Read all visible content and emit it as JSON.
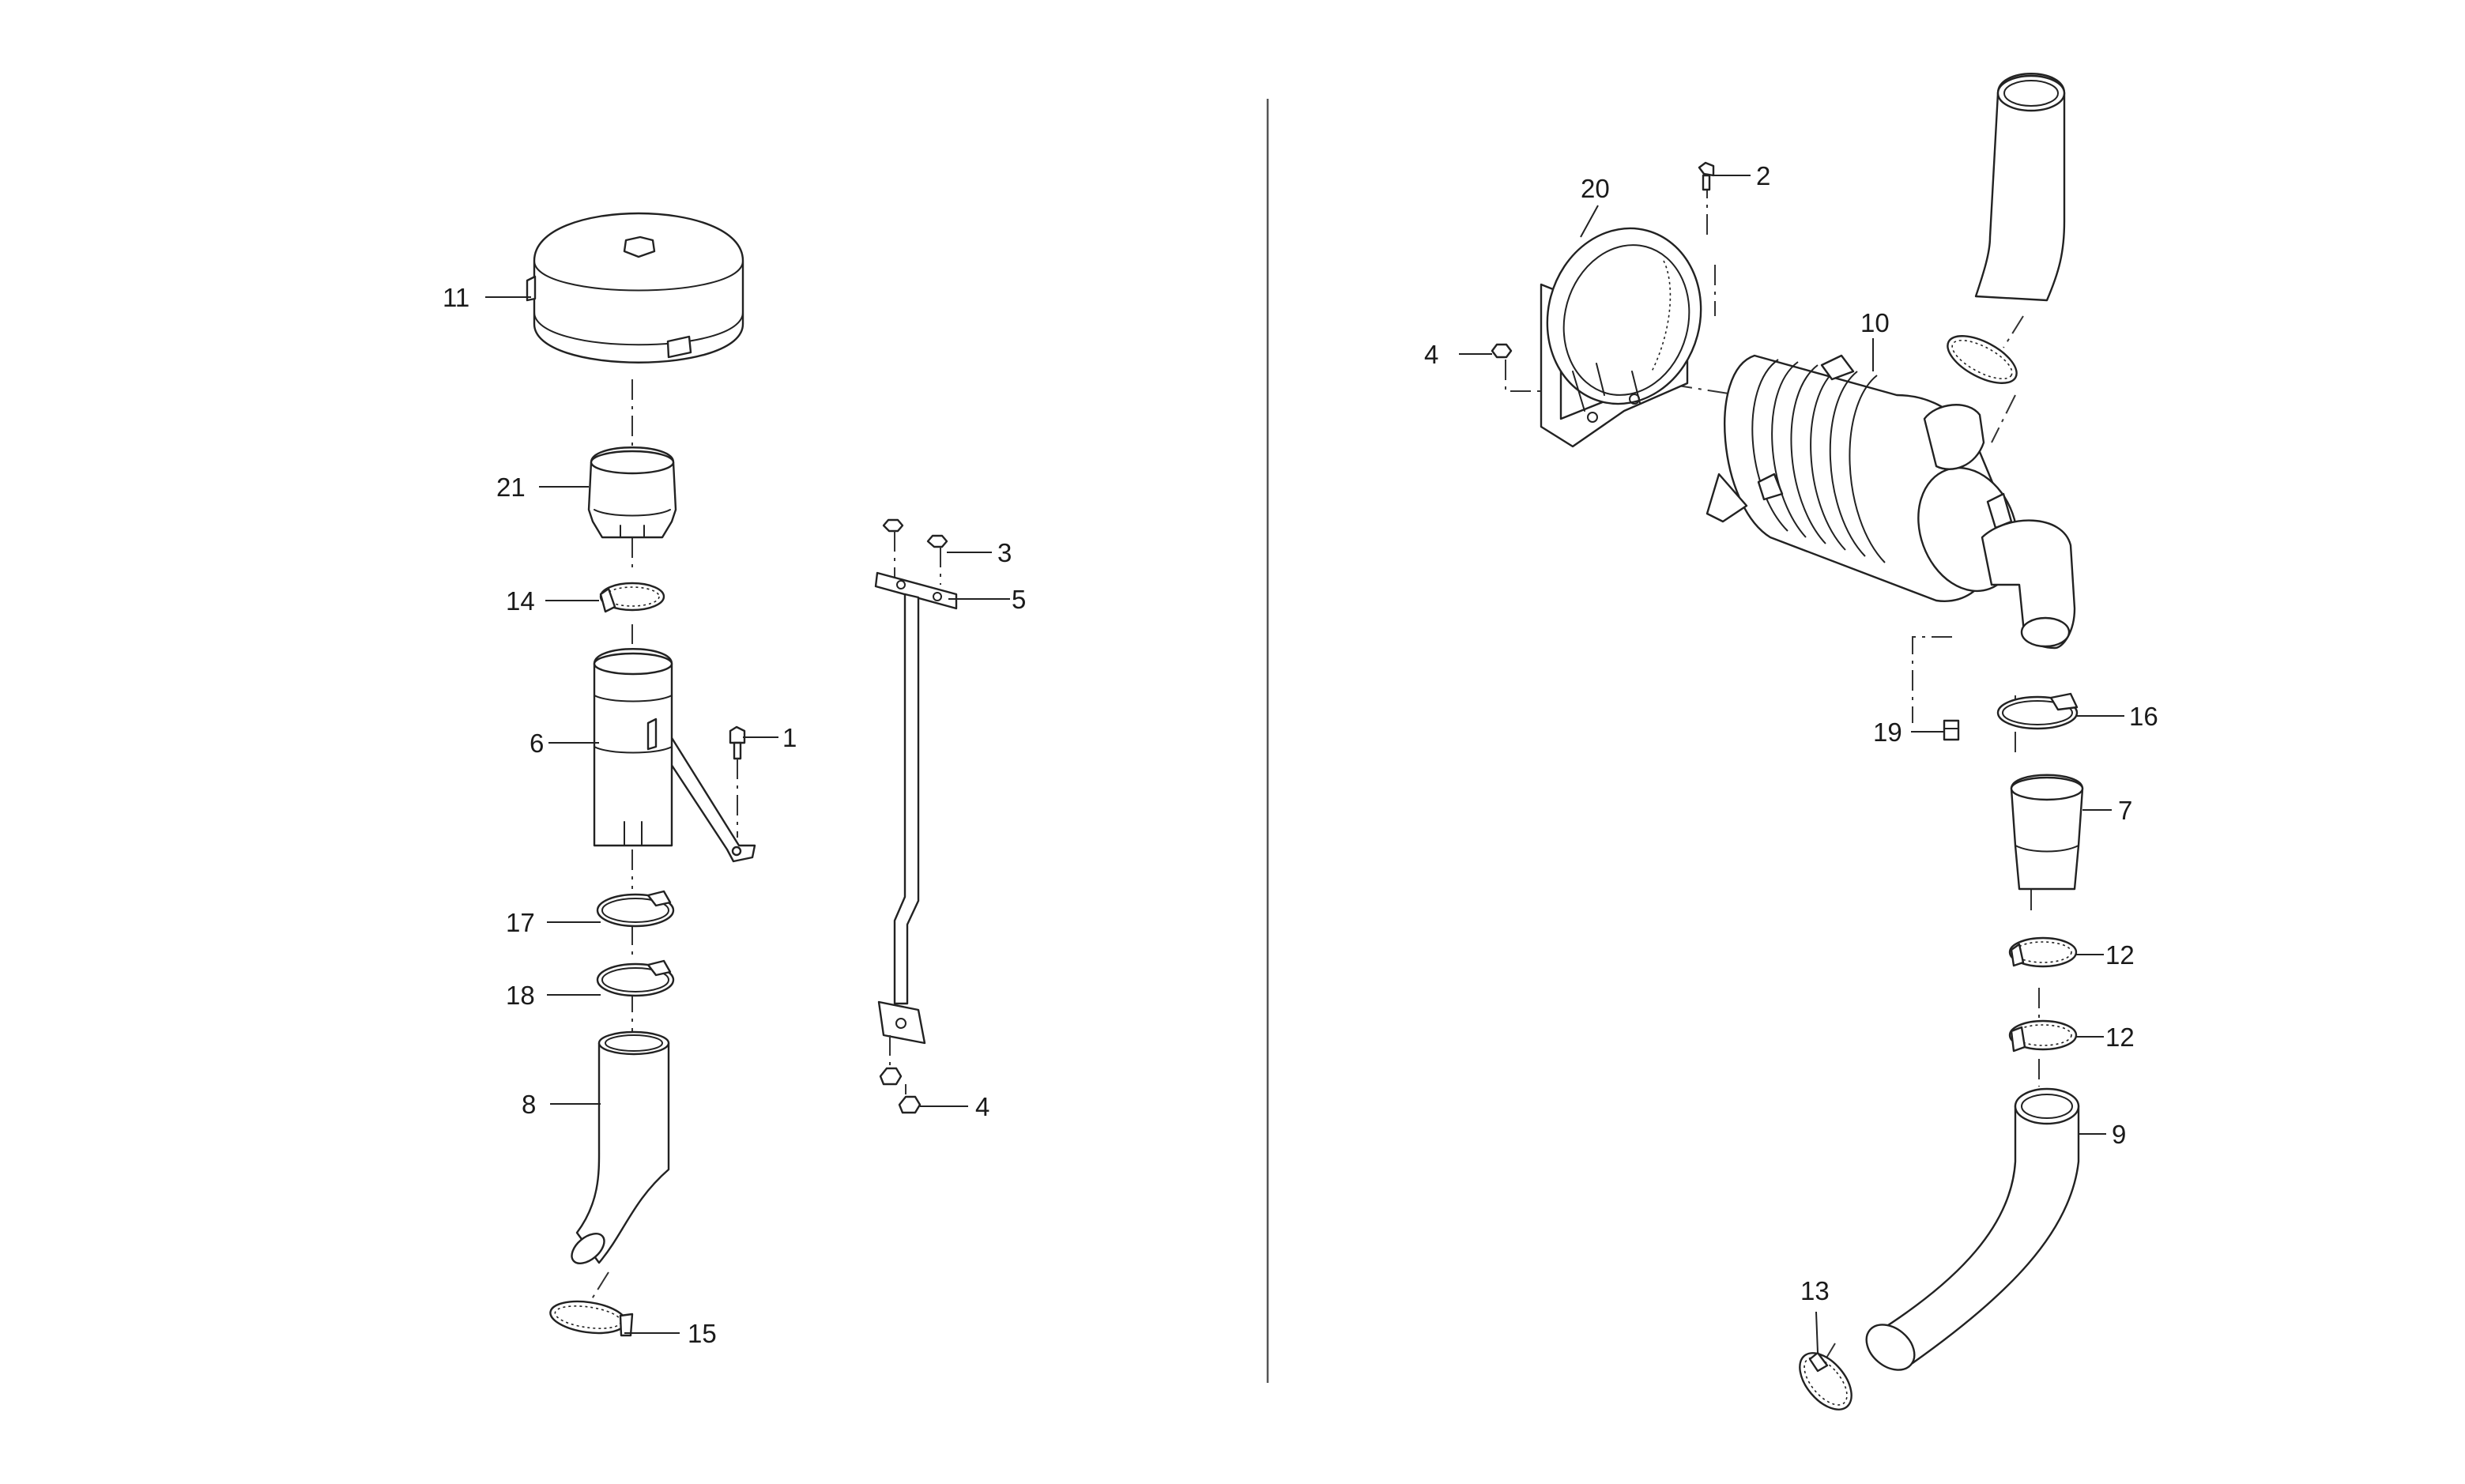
{
  "diagram": {
    "type": "exploded-parts-view",
    "callouts": {
      "c1": "1",
      "c2": "2",
      "c3": "3",
      "c4a": "4",
      "c4b": "4",
      "c5": "5",
      "c6": "6",
      "c7": "7",
      "c8": "8",
      "c9": "9",
      "c10": "10",
      "c11": "11",
      "c12a": "12",
      "c12b": "12",
      "c13": "13",
      "c14": "14",
      "c15": "15",
      "c16": "16",
      "c17": "17",
      "c18": "18",
      "c19": "19",
      "c20": "20",
      "c21": "21"
    }
  }
}
